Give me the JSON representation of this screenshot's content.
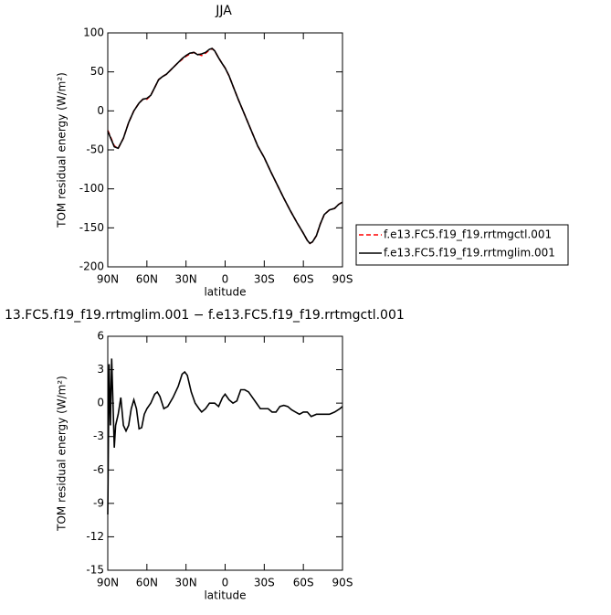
{
  "chart_data": [
    {
      "type": "line",
      "title": "JJA",
      "ylabel": "TOM residual energy (W/m²)",
      "xlabel": "latitude",
      "x": [
        90,
        85,
        82,
        78,
        74,
        70,
        66,
        63,
        60,
        57,
        54,
        51,
        48,
        45,
        42,
        39,
        36,
        33,
        30,
        27,
        24,
        21,
        18,
        15,
        12,
        10,
        8,
        5,
        2,
        0,
        -3,
        -6,
        -10,
        -15,
        -20,
        -25,
        -30,
        -35,
        -40,
        -45,
        -50,
        -55,
        -60,
        -63,
        -65,
        -67,
        -70,
        -73,
        -76,
        -80,
        -84,
        -87,
        -90
      ],
      "series": [
        {
          "name": "f.e13.FC5.f19_f19.rrtmgctl.001",
          "color": "#ff0000",
          "dash": true,
          "values": [
            -25,
            -45,
            -48,
            -35,
            -15,
            0,
            10,
            15,
            15,
            20,
            30,
            40,
            44,
            47,
            52,
            57,
            62,
            66,
            70,
            73,
            75,
            73,
            71,
            74,
            78,
            80,
            77,
            68,
            60,
            55,
            45,
            32,
            15,
            -5,
            -25,
            -45,
            -60,
            -78,
            -95,
            -112,
            -128,
            -143,
            -157,
            -166,
            -170,
            -168,
            -160,
            -145,
            -133,
            -127,
            -125,
            -120,
            -117
          ]
        },
        {
          "name": "f.e13.FC5.f19_f19.rrtmglim.001",
          "color": "#000000",
          "dash": false,
          "values": [
            -26,
            -46,
            -48,
            -35,
            -15,
            0,
            10,
            15,
            16,
            20,
            30,
            40,
            44,
            47,
            52,
            57,
            62,
            67,
            71,
            74,
            75,
            72,
            73,
            75,
            79,
            80,
            77,
            68,
            60,
            55,
            45,
            32,
            15,
            -5,
            -25,
            -45,
            -60,
            -78,
            -95,
            -112,
            -128,
            -143,
            -157,
            -166,
            -170,
            -168,
            -160,
            -145,
            -133,
            -127,
            -125,
            -120,
            -117
          ]
        }
      ],
      "xlim": [
        90,
        -90
      ],
      "xticks": [
        {
          "value": 90,
          "label": "90N"
        },
        {
          "value": 60,
          "label": "60N"
        },
        {
          "value": 30,
          "label": "30N"
        },
        0,
        {
          "value": -30,
          "label": "30S"
        },
        {
          "value": -60,
          "label": "60S"
        },
        {
          "value": -90,
          "label": "90S"
        }
      ],
      "ylim": [
        -200,
        100
      ],
      "yticks": [
        100,
        50,
        0,
        -50,
        -100,
        -150,
        -200
      ],
      "legend": "right"
    },
    {
      "type": "line",
      "title": "13.FC5.f19_f19.rrtmglim.001 − f.e13.FC5.f19_f19.rrtmgctl.001",
      "ylabel": "TOM residual energy (W/m²)",
      "xlabel": "latitude",
      "x": [
        90,
        89,
        88,
        87,
        86,
        85,
        84,
        82,
        80,
        78,
        76,
        74,
        72,
        70,
        68,
        66,
        64,
        62,
        60,
        57,
        54,
        52,
        50,
        47,
        44,
        40,
        36,
        33,
        31,
        29,
        26,
        23,
        20,
        18,
        15,
        12,
        8,
        5,
        2,
        0,
        -3,
        -6,
        -9,
        -12,
        -15,
        -18,
        -21,
        -24,
        -27,
        -30,
        -33,
        -36,
        -39,
        -42,
        -45,
        -48,
        -51,
        -54,
        -57,
        -60,
        -63,
        -66,
        -70,
        -75,
        -80,
        -84,
        -88,
        -90
      ],
      "series": [
        {
          "color": "#000000",
          "dash": false,
          "values": [
            -10,
            3.5,
            -2,
            4,
            0,
            -4,
            -2,
            -1,
            0.5,
            -2,
            -2.5,
            -2,
            -0.5,
            0.3,
            -0.5,
            -2.3,
            -2.2,
            -1,
            -0.5,
            0,
            0.8,
            1,
            0.6,
            -0.5,
            -0.3,
            0.5,
            1.5,
            2.6,
            2.8,
            2.5,
            1,
            0,
            -0.5,
            -0.8,
            -0.5,
            0,
            0,
            -0.3,
            0.5,
            0.8,
            0.3,
            0,
            0.2,
            1.2,
            1.2,
            1,
            0.5,
            0,
            -0.5,
            -0.5,
            -0.5,
            -0.8,
            -0.8,
            -0.3,
            -0.2,
            -0.3,
            -0.6,
            -0.8,
            -1,
            -0.8,
            -0.8,
            -1.2,
            -1,
            -1,
            -1,
            -0.8,
            -0.5,
            -0.3
          ]
        }
      ],
      "xlim": [
        90,
        -90
      ],
      "xticks": [
        {
          "value": 90,
          "label": "90N"
        },
        {
          "value": 60,
          "label": "60N"
        },
        {
          "value": 30,
          "label": "30N"
        },
        0,
        {
          "value": -30,
          "label": "30S"
        },
        {
          "value": -60,
          "label": "60S"
        },
        {
          "value": -90,
          "label": "90S"
        }
      ],
      "ylim": [
        -15,
        6
      ],
      "yticks": [
        6,
        3,
        0,
        -3,
        -6,
        -9,
        -12,
        -15
      ]
    }
  ]
}
